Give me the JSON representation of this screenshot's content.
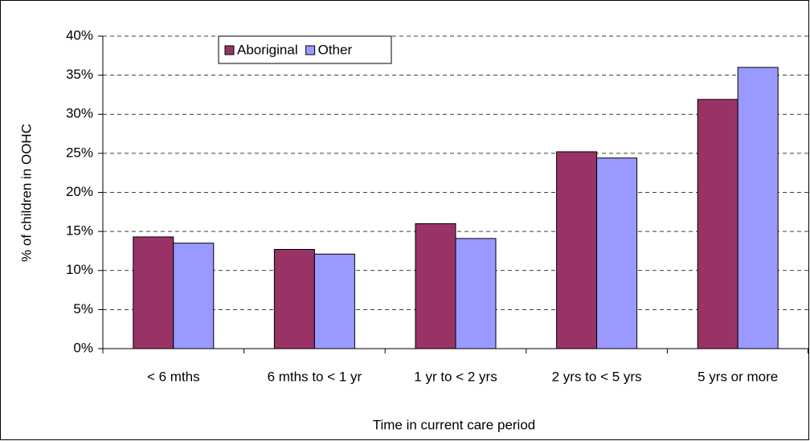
{
  "chart_data": {
    "type": "bar",
    "x_label": "Time in current care period",
    "y_label": "% of children in OOHC",
    "categories": [
      "< 6 mths",
      "6 mths to < 1 yr",
      "1 yr to < 2 yrs",
      "2 yrs to < 5 yrs",
      "5 yrs or more"
    ],
    "series": [
      {
        "name": "Aboriginal",
        "color": "#993366",
        "values": [
          14.3,
          12.7,
          16.0,
          25.2,
          31.9
        ]
      },
      {
        "name": "Other",
        "color": "#9999ff",
        "values": [
          13.5,
          12.1,
          14.1,
          24.4,
          36.0
        ]
      }
    ],
    "ylim": [
      0,
      40
    ],
    "yticks": [
      {
        "value": 0,
        "label": "0%"
      },
      {
        "value": 5,
        "label": "5%"
      },
      {
        "value": 10,
        "label": "10%"
      },
      {
        "value": 15,
        "label": "15%"
      },
      {
        "value": 20,
        "label": "20%"
      },
      {
        "value": 25,
        "label": "25%"
      },
      {
        "value": 30,
        "label": "30%"
      },
      {
        "value": 35,
        "label": "35%"
      },
      {
        "value": 40,
        "label": "40%"
      }
    ],
    "grid": true,
    "legend": "top-left"
  }
}
